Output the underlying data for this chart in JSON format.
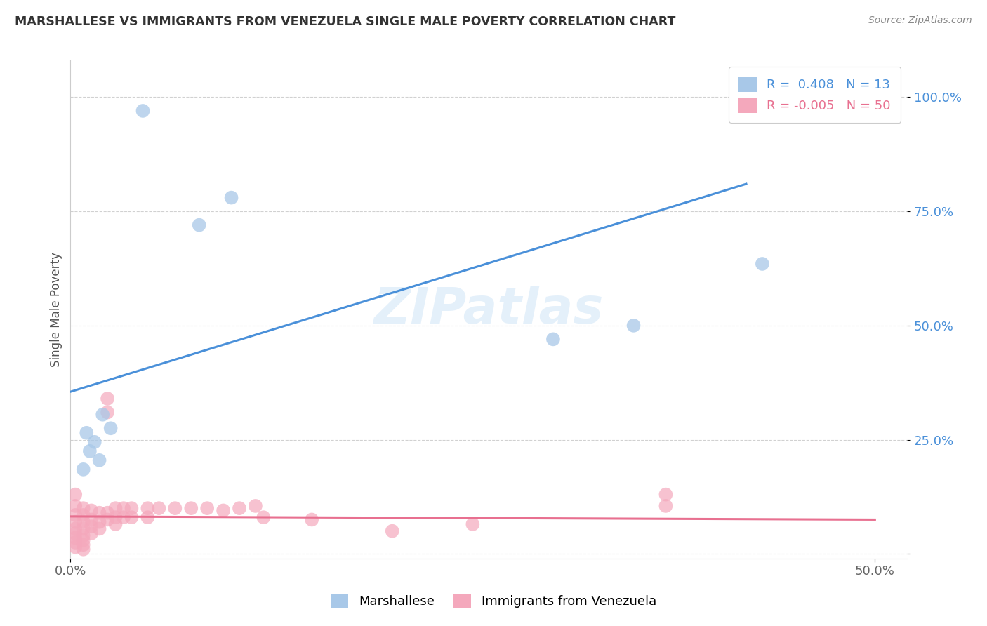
{
  "title": "MARSHALLESE VS IMMIGRANTS FROM VENEZUELA SINGLE MALE POVERTY CORRELATION CHART",
  "source": "Source: ZipAtlas.com",
  "ylabel": "Single Male Poverty",
  "y_ticks": [
    0.0,
    0.25,
    0.5,
    0.75,
    1.0
  ],
  "y_tick_labels": [
    "",
    "25.0%",
    "50.0%",
    "75.0%",
    "100.0%"
  ],
  "x_ticks": [
    0.0,
    0.5
  ],
  "x_tick_labels": [
    "0.0%",
    "50.0%"
  ],
  "x_range": [
    0.0,
    0.52
  ],
  "y_range": [
    -0.01,
    1.08
  ],
  "watermark": "ZIPatlas",
  "blue_R": 0.408,
  "blue_N": 13,
  "pink_R": -0.005,
  "pink_N": 50,
  "blue_color": "#a8c8e8",
  "pink_color": "#f4a8bc",
  "blue_line_color": "#4a90d9",
  "pink_line_color": "#e87090",
  "blue_scatter": [
    [
      0.045,
      0.97
    ],
    [
      0.08,
      0.72
    ],
    [
      0.1,
      0.78
    ],
    [
      0.02,
      0.305
    ],
    [
      0.025,
      0.275
    ],
    [
      0.01,
      0.265
    ],
    [
      0.015,
      0.245
    ],
    [
      0.012,
      0.225
    ],
    [
      0.018,
      0.205
    ],
    [
      0.008,
      0.185
    ],
    [
      0.35,
      0.5
    ],
    [
      0.43,
      0.635
    ],
    [
      0.3,
      0.47
    ]
  ],
  "pink_scatter": [
    [
      0.003,
      0.13
    ],
    [
      0.003,
      0.105
    ],
    [
      0.003,
      0.085
    ],
    [
      0.003,
      0.07
    ],
    [
      0.003,
      0.055
    ],
    [
      0.003,
      0.045
    ],
    [
      0.003,
      0.035
    ],
    [
      0.003,
      0.025
    ],
    [
      0.003,
      0.015
    ],
    [
      0.008,
      0.1
    ],
    [
      0.008,
      0.085
    ],
    [
      0.008,
      0.07
    ],
    [
      0.008,
      0.055
    ],
    [
      0.008,
      0.04
    ],
    [
      0.008,
      0.03
    ],
    [
      0.008,
      0.02
    ],
    [
      0.008,
      0.01
    ],
    [
      0.013,
      0.095
    ],
    [
      0.013,
      0.075
    ],
    [
      0.013,
      0.06
    ],
    [
      0.013,
      0.045
    ],
    [
      0.018,
      0.09
    ],
    [
      0.018,
      0.07
    ],
    [
      0.018,
      0.055
    ],
    [
      0.023,
      0.34
    ],
    [
      0.023,
      0.31
    ],
    [
      0.023,
      0.09
    ],
    [
      0.023,
      0.075
    ],
    [
      0.028,
      0.1
    ],
    [
      0.028,
      0.08
    ],
    [
      0.028,
      0.065
    ],
    [
      0.033,
      0.1
    ],
    [
      0.033,
      0.08
    ],
    [
      0.038,
      0.1
    ],
    [
      0.038,
      0.08
    ],
    [
      0.048,
      0.1
    ],
    [
      0.048,
      0.08
    ],
    [
      0.055,
      0.1
    ],
    [
      0.065,
      0.1
    ],
    [
      0.075,
      0.1
    ],
    [
      0.085,
      0.1
    ],
    [
      0.095,
      0.095
    ],
    [
      0.105,
      0.1
    ],
    [
      0.115,
      0.105
    ],
    [
      0.37,
      0.13
    ],
    [
      0.37,
      0.105
    ],
    [
      0.2,
      0.05
    ],
    [
      0.25,
      0.065
    ],
    [
      0.15,
      0.075
    ],
    [
      0.12,
      0.08
    ]
  ],
  "blue_trend_x": [
    0.0,
    0.42
  ],
  "blue_trend_y": [
    0.355,
    0.81
  ],
  "pink_trend_x": [
    0.0,
    0.5
  ],
  "pink_trend_y": [
    0.082,
    0.075
  ],
  "background_color": "#ffffff",
  "grid_color": "#cccccc",
  "legend_loc": "upper right",
  "bottom_legend_labels": [
    "Marshallese",
    "Immigrants from Venezuela"
  ]
}
